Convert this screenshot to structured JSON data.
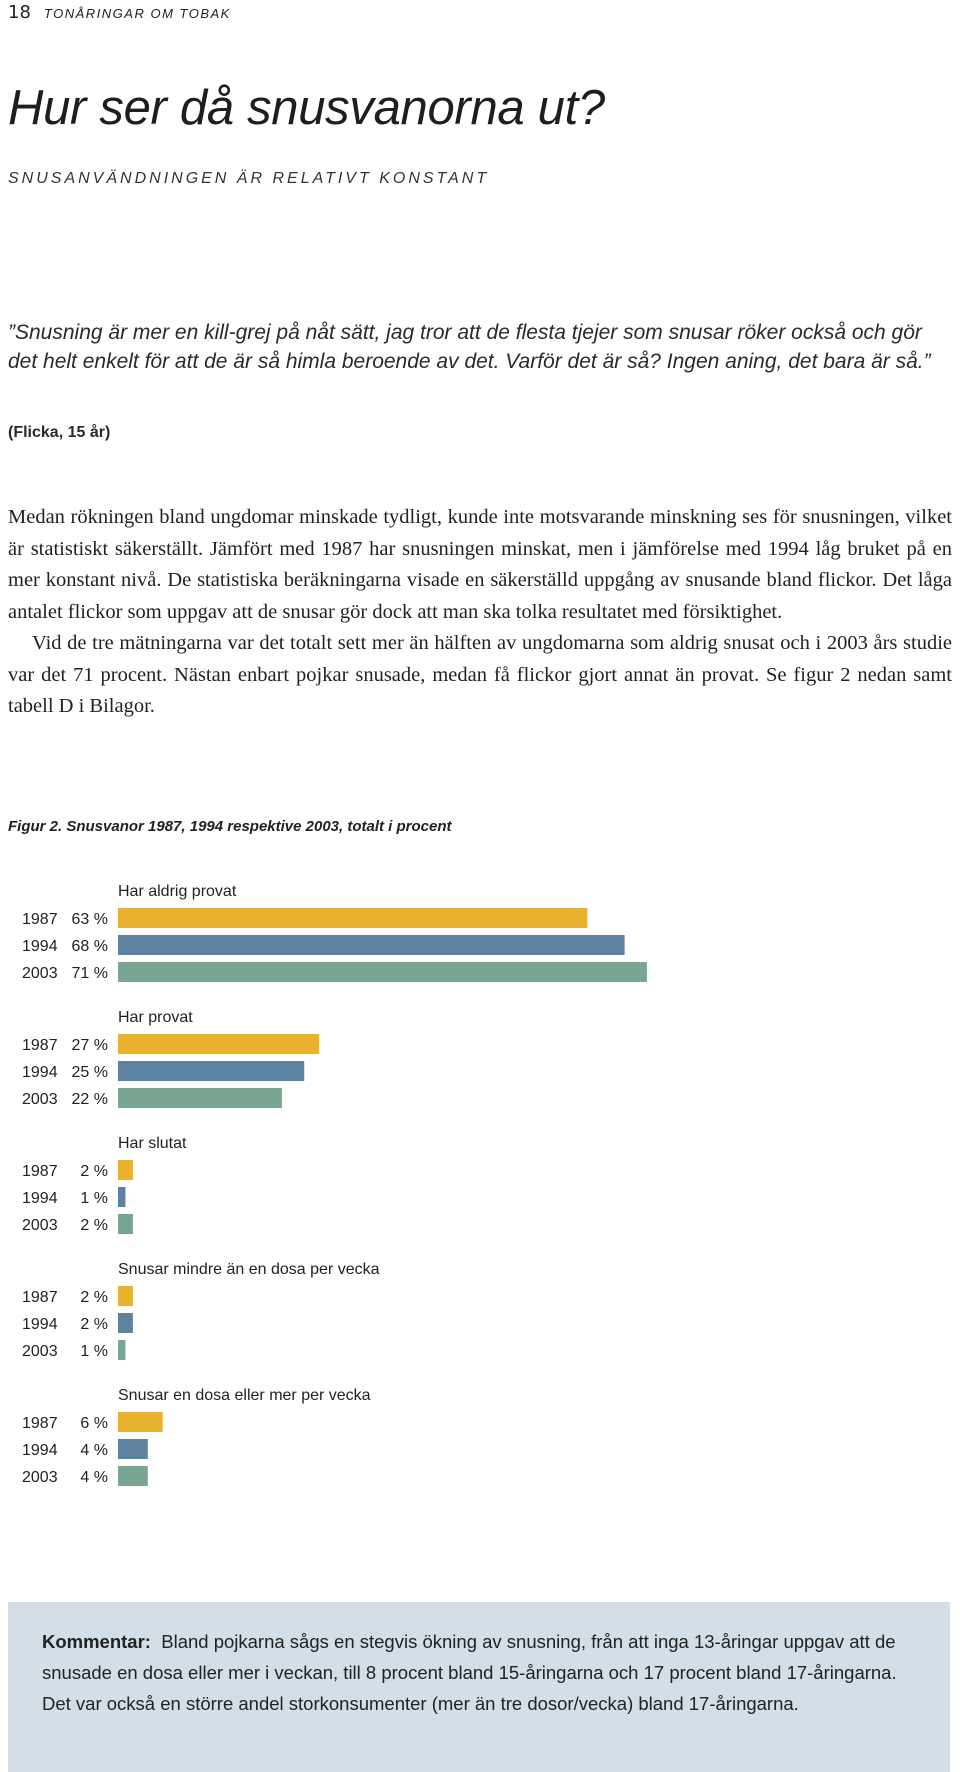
{
  "header": {
    "page_number": "18",
    "section": "Tonåringar om tobak"
  },
  "title": "Hur ser då snusvanorna ut?",
  "subheading": "SNUSANVÄNDNINGEN ÄR RELATIVT KONSTANT",
  "quote": {
    "text": "”Snusning är mer en kill-grej på nåt sätt, jag tror att de flesta tjejer som snusar röker också och gör det helt enkelt för att de är så himla beroende av det. Varför det är så? Ingen aning, det bara är så.”",
    "source": "(Flicka, 15 år)"
  },
  "body": {
    "p1": "Medan rökningen bland ungdomar minskade tydligt, kunde inte motsvarande minskning ses för snusningen, vilket är statistiskt säkerställt. Jämfört med 1987 har snusningen minskat, men i jämförelse med 1994 låg bruket på en mer konstant nivå. De statistiska beräkningarna visade en säkerställd uppgång av snusande bland flickor. Det låga antalet flickor som uppgav att de snusar gör dock att man ska tolka resultatet med försiktighet.",
    "p2": "Vid de tre mätningarna var det totalt sett mer än hälften av ungdomarna som aldrig snusat och i 2003 års studie var det 71 procent. Nästan enbart pojkar snusade, medan få flickor gjort annat än provat. Se figur 2 nedan samt tabell D i Bilagor."
  },
  "figure_caption": "Figur 2. Snusvanor 1987, 1994 respektive 2003, totalt i procent",
  "colors": {
    "1987": "#e8b12e",
    "1994": "#5e82a0",
    "2003": "#79a693"
  },
  "chart_data": {
    "type": "bar",
    "orientation": "horizontal",
    "title": "",
    "xlabel": "",
    "ylabel": "",
    "unit": "%",
    "series_names": [
      "1987",
      "1994",
      "2003"
    ],
    "groups": [
      {
        "label": "Har aldrig provat",
        "values": [
          63,
          68,
          71
        ]
      },
      {
        "label": "Har provat",
        "values": [
          27,
          25,
          22
        ]
      },
      {
        "label": "Har slutat",
        "values": [
          2,
          1,
          2
        ]
      },
      {
        "label": "Snusar mindre än en dosa per vecka",
        "values": [
          2,
          2,
          1
        ]
      },
      {
        "label": "Snusar en dosa eller mer per vecka",
        "values": [
          6,
          4,
          4
        ]
      }
    ],
    "grid": false,
    "legend": "none"
  },
  "comment": {
    "label": "Kommentar:",
    "text": "Bland pojkarna sågs en stegvis ökning av snusning, från att inga 13-åringar uppgav att de snusade en dosa eller mer i veckan, till 8 procent bland 15-åringarna och 17 procent bland 17-åringarna. Det var också en större andel storkonsumenter (mer än tre dosor/vecka) bland 17-åringarna."
  }
}
